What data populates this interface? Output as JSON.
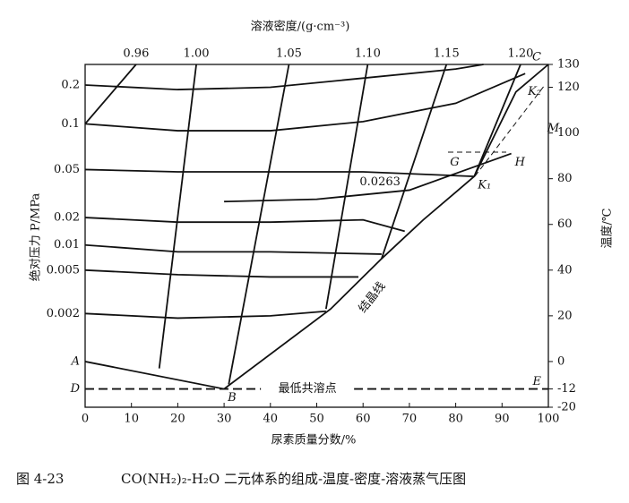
{
  "chart_data": {
    "type": "line",
    "figure_number": "图 4-23",
    "title": "CO(NH₂)₂-H₂O 二元体系的组成-温度-密度-溶液蒸气压图",
    "x_label": "尿素质量分数/%",
    "y_label": "绝对压力 P/MPa",
    "y2_label": "温度/℃",
    "top_label": "溶液密度/(g·cm⁻³)",
    "xlim": [
      0,
      100
    ],
    "xticks": [
      0,
      10,
      20,
      30,
      40,
      50,
      60,
      70,
      80,
      90,
      100
    ],
    "y2lim": [
      -20,
      130
    ],
    "y2ticks": [
      -20,
      -12,
      0,
      20,
      40,
      60,
      80,
      100,
      120,
      130
    ],
    "color": "#111111",
    "isobars": [
      {
        "name": "0.2",
        "axis": "y2",
        "x": [
          0,
          20,
          40,
          60,
          80,
          86
        ],
        "values": [
          121,
          119,
          120,
          124,
          128,
          130
        ]
      },
      {
        "name": "0.1",
        "axis": "y2",
        "x": [
          0,
          20,
          40,
          60,
          80,
          95
        ],
        "values": [
          104,
          101,
          101,
          105,
          113,
          126
        ]
      },
      {
        "name": "0.05",
        "axis": "y2",
        "x": [
          0,
          20,
          40,
          60,
          84
        ],
        "values": [
          84,
          83,
          83,
          83,
          81
        ]
      },
      {
        "name": "0.0263",
        "axis": "y2",
        "x": [
          30,
          50,
          70,
          92
        ],
        "values": [
          70,
          71,
          75,
          91
        ]
      },
      {
        "name": "0.02",
        "axis": "y2",
        "x": [
          0,
          20,
          40,
          60,
          69
        ],
        "values": [
          63,
          61,
          61,
          62,
          57
        ]
      },
      {
        "name": "0.01",
        "axis": "y2",
        "x": [
          0,
          20,
          40,
          64
        ],
        "values": [
          51,
          48,
          48,
          47
        ]
      },
      {
        "name": "0.005",
        "axis": "y2",
        "x": [
          0,
          20,
          40,
          59
        ],
        "values": [
          40,
          38,
          37,
          37
        ]
      },
      {
        "name": "0.002",
        "axis": "y2",
        "x": [
          0,
          20,
          40,
          52
        ],
        "values": [
          21,
          19,
          20,
          22
        ]
      }
    ],
    "density_lines": [
      {
        "name": "0.96",
        "axis": "y2",
        "x": [
          0,
          11
        ],
        "values": [
          104,
          130
        ]
      },
      {
        "name": "1.00",
        "axis": "y2",
        "x": [
          16,
          24
        ],
        "values": [
          -3,
          130
        ]
      },
      {
        "name": "1.05",
        "axis": "y2",
        "x": [
          31,
          44
        ],
        "values": [
          -10,
          130
        ]
      },
      {
        "name": "1.10",
        "axis": "y2",
        "x": [
          52,
          61
        ],
        "values": [
          23,
          130
        ]
      },
      {
        "name": "1.15",
        "axis": "y2",
        "x": [
          64,
          78
        ],
        "values": [
          45,
          130
        ]
      },
      {
        "name": "1.20",
        "axis": "y2",
        "x": [
          84,
          94
        ],
        "values": [
          81,
          130
        ]
      }
    ],
    "crystallization_line": {
      "name": "结晶线",
      "axis": "y2",
      "x": [
        0,
        30,
        53,
        64,
        73,
        84,
        93,
        100
      ],
      "values": [
        0,
        -12,
        23,
        45,
        62,
        81,
        118,
        130
      ]
    },
    "eutectic_line": {
      "name": "最低共溶点",
      "axis": "y2",
      "x": [
        0,
        100
      ],
      "values": [
        -12,
        -12
      ]
    },
    "points": [
      {
        "label": "A",
        "x": 0,
        "y": 0
      },
      {
        "label": "D",
        "x": 0,
        "y": -12
      },
      {
        "label": "B",
        "x": 30,
        "y": -12
      },
      {
        "label": "E",
        "x": 100,
        "y": -12
      },
      {
        "label": "K₁",
        "x": 84,
        "y": 81
      },
      {
        "label": "G",
        "x": 78,
        "y": 91
      },
      {
        "label": "H",
        "x": 92,
        "y": 91
      },
      {
        "label": "M",
        "x": 99,
        "y": 106
      },
      {
        "label": "K₂",
        "x": 100,
        "y": 115
      },
      {
        "label": "C",
        "x": 100,
        "y": 130
      }
    ]
  }
}
